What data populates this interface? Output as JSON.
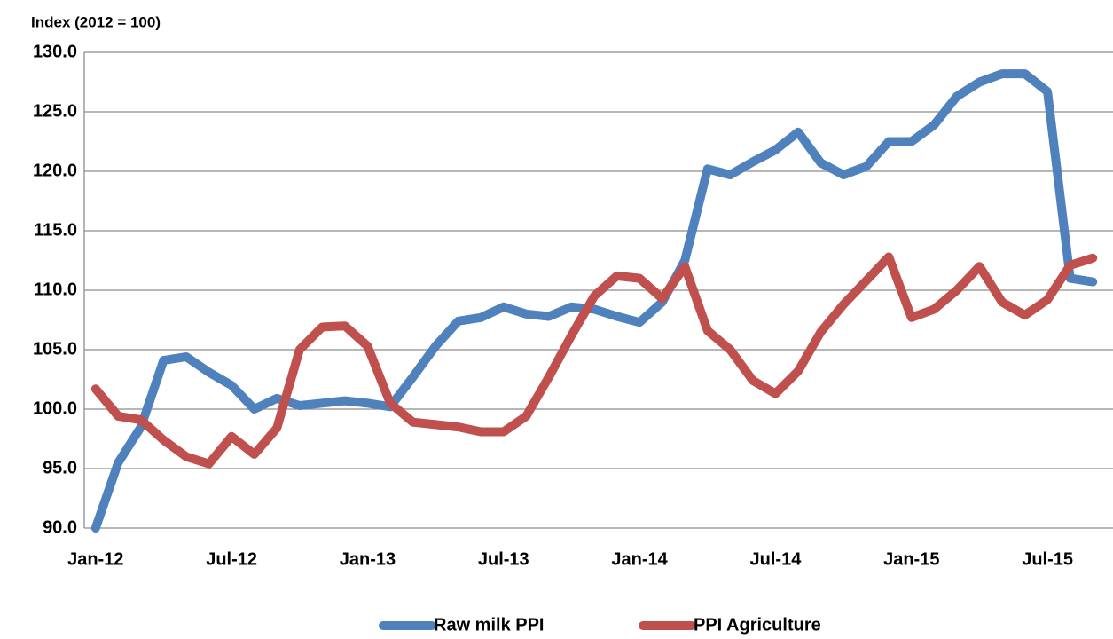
{
  "chart_data": {
    "type": "line",
    "y_axis_label": "Index (2012 = 100)",
    "categories": [
      "Jan-12",
      null,
      null,
      null,
      null,
      null,
      "Jul-12",
      null,
      null,
      null,
      null,
      null,
      "Jan-13",
      null,
      null,
      null,
      null,
      null,
      "Jul-13",
      null,
      null,
      null,
      null,
      null,
      "Jan-14",
      null,
      null,
      null,
      null,
      null,
      "Jul-14",
      null,
      null,
      null,
      null,
      null,
      "Jan-15",
      null,
      null,
      null,
      null,
      null,
      "Jul-15",
      null,
      null
    ],
    "series": [
      {
        "name": "Raw milk PPI",
        "color": "#4f81bd",
        "values": [
          90.0,
          95.5,
          98.5,
          104.1,
          104.4,
          103.1,
          102.0,
          100.0,
          100.9,
          100.3,
          100.5,
          100.7,
          100.5,
          100.2,
          102.7,
          105.3,
          107.4,
          107.7,
          108.6,
          108.0,
          107.8,
          108.6,
          108.4,
          107.8,
          107.3,
          109.0,
          112.5,
          120.2,
          119.7,
          120.8,
          121.8,
          123.3,
          120.7,
          119.7,
          120.4,
          122.5,
          122.5,
          123.9,
          126.3,
          127.5,
          128.2,
          128.2,
          126.7,
          111.0,
          110.7
        ]
      },
      {
        "name": "PPI Agriculture",
        "color": "#c0504d",
        "values": [
          101.7,
          99.4,
          99.1,
          97.4,
          96.0,
          95.4,
          97.7,
          96.2,
          98.4,
          105.0,
          106.9,
          107.0,
          105.3,
          100.5,
          98.9,
          98.7,
          98.5,
          98.1,
          98.1,
          99.4,
          102.7,
          106.2,
          109.5,
          111.2,
          111.0,
          109.3,
          112.0,
          106.6,
          105.0,
          102.4,
          101.3,
          103.2,
          106.5,
          108.8,
          110.8,
          112.8,
          107.7,
          108.4,
          110.0,
          112.0,
          109.0,
          107.9,
          109.2,
          112.1,
          112.7
        ]
      }
    ],
    "ylim": [
      90,
      130
    ],
    "yticks": [
      {
        "value": 90,
        "label": "90.0"
      },
      {
        "value": 95,
        "label": "95.0"
      },
      {
        "value": 100,
        "label": "100.0"
      },
      {
        "value": 105,
        "label": "105.0"
      },
      {
        "value": 110,
        "label": "110.0"
      },
      {
        "value": 115,
        "label": "115.0"
      },
      {
        "value": 120,
        "label": "120.0"
      },
      {
        "value": 125,
        "label": "125.0"
      },
      {
        "value": 130,
        "label": "130.0"
      }
    ],
    "grid": true,
    "legend": "bottom"
  }
}
